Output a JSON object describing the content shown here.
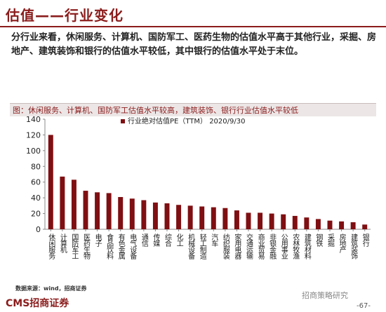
{
  "header": {
    "title": "估值——行业变化"
  },
  "paragraph": "分行业来看，休闲服务、计算机、国防军工、医药生物的估值水平高于其他行业，采掘、房地产、建筑装饰和银行的估值水平较低，其中银行的估值水平处于末位。",
  "figure_caption": "图：休闲服务、计算机、国防军工估值水平较高，建筑装饰、银行行业估值水平较低",
  "source": "数据来源：wind，招商证券",
  "footer": {
    "brand": "CMS招商证券",
    "wechat": "招商策略研究",
    "page": "-67-"
  },
  "colors": {
    "accent": "#8b1c1c",
    "bar": "#7f0f12"
  },
  "chart_data": {
    "type": "bar",
    "title": "",
    "xlabel": "",
    "ylabel": "",
    "ylim": [
      0,
      140
    ],
    "yticks": [
      0,
      20,
      40,
      60,
      80,
      100,
      120,
      140
    ],
    "legend": "行业绝对估值PE（TTM） 2020/9/30",
    "legend_position": "top",
    "grid": false,
    "categories": [
      "休闲服务",
      "计算机",
      "国防军工",
      "医药生物",
      "电子",
      "食品饮料",
      "有色金属",
      "电气设备",
      "通信",
      "传媒",
      "综合",
      "化工",
      "机械设备",
      "轻工制造",
      "汽车",
      "纺织服装",
      "家用电器",
      "交通运输",
      "商业贸易",
      "非银金融",
      "公用事业",
      "农林牧渔",
      "建筑材料",
      "钢铁",
      "采掘",
      "房地产",
      "建筑装饰",
      "银行"
    ],
    "series": [
      {
        "name": "行业绝对估值PE（TTM） 2020/9/30",
        "values": [
          120,
          67,
          63,
          49,
          47,
          46,
          41,
          39,
          37,
          34,
          33,
          31,
          30,
          29,
          28,
          27,
          24,
          21,
          21,
          20,
          19,
          17,
          15,
          13,
          11,
          10,
          9,
          6
        ]
      }
    ]
  }
}
